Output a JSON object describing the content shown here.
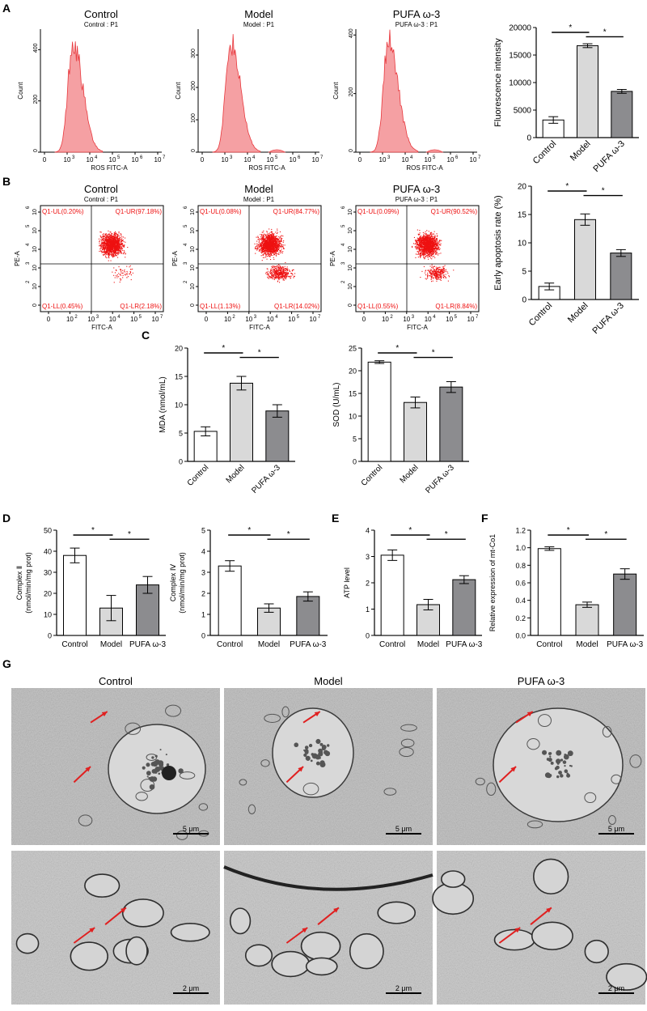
{
  "panel_labels": {
    "A": "A",
    "B": "B",
    "C": "C",
    "D": "D",
    "E": "E",
    "F": "F",
    "G": "G"
  },
  "groups": [
    "Control",
    "Model",
    "PUFA ω-3"
  ],
  "colors": {
    "bar_fills": [
      "#ffffff",
      "#d9d9d9",
      "#8c8c8f"
    ],
    "histogram": "#e8383d",
    "histogram_fill": "#f5a0a3",
    "scatter": "#ee1111"
  },
  "histograms": [
    {
      "title": "Control",
      "subtitle": "Control : P1",
      "ymax": 480,
      "peak": 430,
      "yticks": [
        "0",
        "200",
        "400"
      ],
      "outlier": false
    },
    {
      "title": "Model",
      "subtitle": "Model : P1",
      "ymax": 380,
      "peak": 340,
      "yticks": [
        "0",
        "100",
        "200",
        "300"
      ],
      "outlier": true
    },
    {
      "title": "PUFA ω-3",
      "subtitle": "PUFA ω-3 : P1",
      "ymax": 420,
      "peak": 380,
      "yticks": [
        "0",
        "200",
        "400"
      ],
      "outlier": true
    }
  ],
  "hist_axes": {
    "ylabel": "Count",
    "xlabel": "ROS FITC-A",
    "xticks": [
      "0",
      "10",
      "10",
      "10",
      "10",
      "10"
    ],
    "xexp": [
      "",
      "3",
      "4",
      "5",
      "6",
      "7"
    ]
  },
  "scatter_plots": [
    {
      "title": "Control",
      "subtitle": "Control : P1",
      "quadrants": {
        "ul": "Q1-UL(0.20%)",
        "ur": "Q1-UR(97.18%)",
        "ll": "Q1-LL(0.45%)",
        "lr": "Q1-LR(2.18%)"
      }
    },
    {
      "title": "Model",
      "subtitle": "Model : P1",
      "quadrants": {
        "ul": "Q1-UL(0.08%)",
        "ur": "Q1-UR(84.77%)",
        "ll": "Q1-LL(1.13%)",
        "lr": "Q1-LR(14.02%)"
      }
    },
    {
      "title": "PUFA ω-3",
      "subtitle": "PUFA ω-3 : P1",
      "quadrants": {
        "ul": "Q1-UL(0.09%)",
        "ur": "Q1-UR(90.52%)",
        "ll": "Q1-LL(0.55%)",
        "lr": "Q1-LR(8.84%)"
      }
    }
  ],
  "scatter_axes": {
    "ylabel": "PE-A",
    "xlabel": "FITC-A",
    "xticks": [
      "0",
      "10",
      "10",
      "10",
      "10",
      "10"
    ],
    "xexp": [
      "",
      "2",
      "3",
      "4",
      "5",
      "7"
    ],
    "yticks": [
      "0",
      "10",
      "10",
      "10",
      "10",
      "10"
    ],
    "yexp": [
      "",
      "2",
      "3",
      "4",
      "5",
      "6"
    ]
  },
  "chart_data": [
    {
      "type": "bar",
      "id": "fluorescence",
      "categories": [
        "Control",
        "Model",
        "PUFA ω-3"
      ],
      "values": [
        3200,
        16700,
        8400
      ],
      "errors": [
        600,
        350,
        350
      ],
      "ylabel": "Fluorescence intensity",
      "ylim": [
        0,
        20000
      ],
      "yticks": [
        "0",
        "5000",
        "10000",
        "15000",
        "20000"
      ],
      "sig": [
        [
          0,
          1
        ],
        [
          1,
          2
        ]
      ],
      "sig_label": "*"
    },
    {
      "type": "bar",
      "id": "early-apoptosis",
      "categories": [
        "Control",
        "Model",
        "PUFA ω-3"
      ],
      "values": [
        2.3,
        14.1,
        8.2
      ],
      "errors": [
        0.6,
        1.0,
        0.6
      ],
      "ylabel": "Early apoptosis rate (%)",
      "ylim": [
        0,
        20
      ],
      "yticks": [
        "0",
        "5",
        "10",
        "15",
        "20"
      ],
      "sig": [
        [
          0,
          1
        ],
        [
          1,
          2
        ]
      ],
      "sig_label": "*"
    },
    {
      "type": "bar",
      "id": "mda",
      "categories": [
        "Control",
        "Model",
        "PUFA ω-3"
      ],
      "values": [
        5.3,
        13.8,
        8.9
      ],
      "errors": [
        0.8,
        1.2,
        1.1
      ],
      "ylabel": "MDA (nmol/mL)",
      "ylim": [
        0,
        20
      ],
      "yticks": [
        "0",
        "5",
        "10",
        "15",
        "20"
      ],
      "sig": [
        [
          0,
          1
        ],
        [
          1,
          2
        ]
      ],
      "sig_label": "*"
    },
    {
      "type": "bar",
      "id": "sod",
      "categories": [
        "Control",
        "Model",
        "PUFA ω-3"
      ],
      "values": [
        21.9,
        13.0,
        16.4
      ],
      "errors": [
        0.3,
        1.2,
        1.2
      ],
      "ylabel": "SOD (U/mL)",
      "ylim": [
        0,
        25
      ],
      "yticks": [
        "0",
        "5",
        "10",
        "15",
        "20",
        "25"
      ],
      "sig": [
        [
          0,
          1
        ],
        [
          1,
          2
        ]
      ],
      "sig_label": "*"
    },
    {
      "type": "bar",
      "id": "complex-ii",
      "categories": [
        "Control",
        "Model",
        "PUFA ω-3"
      ],
      "values": [
        38,
        13,
        24
      ],
      "errors": [
        3.5,
        6,
        4
      ],
      "ylabel": "Complex Ⅱ",
      "ylabel2": "(nmol/min/mg prot)",
      "ylim": [
        0,
        50
      ],
      "yticks": [
        "0",
        "10",
        "20",
        "30",
        "40",
        "50"
      ],
      "sig": [
        [
          0,
          1
        ],
        [
          1,
          2
        ]
      ],
      "sig_label": "*"
    },
    {
      "type": "bar",
      "id": "complex-iv",
      "categories": [
        "Control",
        "Model",
        "PUFA ω-3"
      ],
      "values": [
        3.3,
        1.3,
        1.85
      ],
      "errors": [
        0.25,
        0.2,
        0.22
      ],
      "ylabel": "Complex Ⅳ",
      "ylabel2": "(nmol/min/mg prot)",
      "ylim": [
        0,
        5
      ],
      "yticks": [
        "0",
        "1",
        "2",
        "3",
        "4",
        "5"
      ],
      "sig": [
        [
          0,
          1
        ],
        [
          1,
          2
        ]
      ],
      "sig_label": "*"
    },
    {
      "type": "bar",
      "id": "atp",
      "categories": [
        "Control",
        "Model",
        "PUFA ω-3"
      ],
      "values": [
        3.05,
        1.17,
        2.12
      ],
      "errors": [
        0.2,
        0.2,
        0.15
      ],
      "ylabel": "ATP level",
      "ylim": [
        0,
        4
      ],
      "yticks": [
        "0",
        "1",
        "2",
        "3",
        "4"
      ],
      "sig": [
        [
          0,
          1
        ],
        [
          1,
          2
        ]
      ],
      "sig_label": "*"
    },
    {
      "type": "bar",
      "id": "mt-co1",
      "categories": [
        "Control",
        "Model",
        "PUFA ω-3"
      ],
      "values": [
        0.99,
        0.35,
        0.7
      ],
      "errors": [
        0.02,
        0.03,
        0.06
      ],
      "ylabel": "Relative expression of mt-Co1",
      "ylim": [
        0,
        1.2
      ],
      "yticks": [
        "0.0",
        "0.2",
        "0.4",
        "0.6",
        "0.8",
        "1.0",
        "1.2"
      ],
      "sig": [
        [
          0,
          1
        ],
        [
          1,
          2
        ]
      ],
      "sig_label": "*"
    }
  ],
  "tem": {
    "titles": [
      "Control",
      "Model",
      "PUFA ω-3"
    ],
    "scale_top": "5 μm",
    "scale_bottom": "2 μm"
  }
}
